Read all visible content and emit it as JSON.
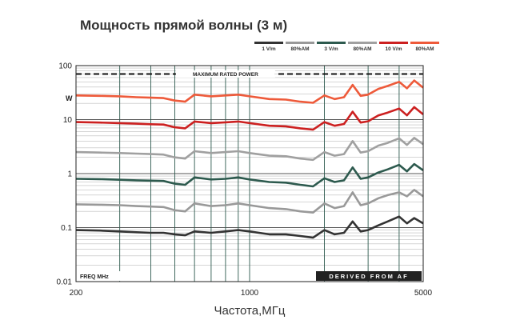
{
  "chart_data": {
    "type": "line",
    "title": "Мощность прямой волны (3 м)",
    "xlabel": "Частота,МГц",
    "ylabel": "W",
    "x_scale": "log",
    "y_scale": "log",
    "xlim": [
      200,
      5000
    ],
    "ylim": [
      0.01,
      100
    ],
    "x_tick_labels": [
      "200",
      "1000",
      "5000"
    ],
    "x_tick_values": [
      200,
      1000,
      5000
    ],
    "y_tick_labels": [
      "100",
      "10",
      "1",
      "0.1",
      "0.01"
    ],
    "y_tick_values": [
      100,
      10,
      1,
      0.1,
      0.01
    ],
    "grid": true,
    "legend_position": "top-right",
    "annotations": {
      "max_power_label": "MAXIMUM RATED POWER",
      "max_power_value": 70,
      "freq_label": "FREQ MHz",
      "derived_label": "DERIVED FROM AF"
    },
    "x": [
      200,
      250,
      300,
      350,
      400,
      450,
      500,
      550,
      600,
      700,
      800,
      900,
      1000,
      1200,
      1400,
      1600,
      1800,
      2000,
      2200,
      2400,
      2600,
      2800,
      3000,
      3300,
      3600,
      4000,
      4300,
      4600,
      5000
    ],
    "series": [
      {
        "name": "1 V/m",
        "color": "#333333",
        "values": [
          0.09,
          0.088,
          0.085,
          0.082,
          0.08,
          0.08,
          0.075,
          0.072,
          0.085,
          0.08,
          0.085,
          0.09,
          0.085,
          0.075,
          0.075,
          0.07,
          0.065,
          0.09,
          0.075,
          0.08,
          0.13,
          0.085,
          0.09,
          0.11,
          0.13,
          0.16,
          0.12,
          0.15,
          0.12
        ]
      },
      {
        "name": "80%AM",
        "color": "#999999",
        "values": [
          0.27,
          0.265,
          0.26,
          0.25,
          0.245,
          0.24,
          0.21,
          0.2,
          0.28,
          0.25,
          0.26,
          0.28,
          0.26,
          0.23,
          0.22,
          0.2,
          0.19,
          0.28,
          0.23,
          0.25,
          0.45,
          0.26,
          0.28,
          0.35,
          0.4,
          0.45,
          0.38,
          0.5,
          0.38
        ]
      },
      {
        "name": "3 V/m",
        "color": "#2d5a4e",
        "values": [
          0.8,
          0.79,
          0.77,
          0.75,
          0.74,
          0.73,
          0.65,
          0.62,
          0.85,
          0.78,
          0.8,
          0.85,
          0.78,
          0.7,
          0.68,
          0.62,
          0.58,
          0.82,
          0.7,
          0.75,
          1.3,
          0.8,
          0.85,
          1.05,
          1.2,
          1.45,
          1.1,
          1.5,
          1.15
        ]
      },
      {
        "name": "80%AM",
        "color": "#a0a0a0",
        "values": [
          2.5,
          2.45,
          2.4,
          2.35,
          2.3,
          2.25,
          2.0,
          1.9,
          2.6,
          2.4,
          2.5,
          2.6,
          2.4,
          2.15,
          2.1,
          1.9,
          1.8,
          2.5,
          2.15,
          2.3,
          4.0,
          2.45,
          2.6,
          3.3,
          3.7,
          4.5,
          3.4,
          4.6,
          3.5
        ]
      },
      {
        "name": "10 V/m",
        "color": "#cc2020",
        "values": [
          9.0,
          8.8,
          8.6,
          8.4,
          8.2,
          8.1,
          7.2,
          6.9,
          9.2,
          8.6,
          8.9,
          9.2,
          8.6,
          7.7,
          7.5,
          6.9,
          6.5,
          9.0,
          7.7,
          8.3,
          14.0,
          8.8,
          9.3,
          12.0,
          13.5,
          16.0,
          12.0,
          17.0,
          12.5
        ]
      },
      {
        "name": "80%AM",
        "color": "#ee5a3a",
        "values": [
          28,
          27.5,
          27,
          26,
          25.5,
          25,
          22.5,
          21.5,
          29,
          27,
          28,
          29,
          27,
          24,
          23.5,
          21.5,
          20.5,
          28,
          24,
          26,
          44,
          27.5,
          29,
          37,
          42,
          50,
          38,
          53,
          39
        ]
      }
    ]
  }
}
